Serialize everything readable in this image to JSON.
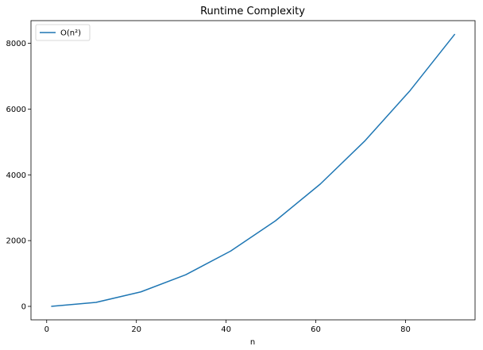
{
  "chart_data": {
    "type": "line",
    "title": "Runtime Complexity",
    "xlabel": "n",
    "ylabel": "",
    "xlim": [
      -3.5,
      95.5
    ],
    "ylim": [
      -410,
      8690
    ],
    "x_ticks": [
      0,
      20,
      40,
      60,
      80
    ],
    "y_ticks": [
      0,
      2000,
      4000,
      6000,
      8000
    ],
    "grid": false,
    "legend_position": "top-left",
    "series": [
      {
        "name": "O(n²)",
        "color": "#1f77b4",
        "x": [
          1,
          11,
          21,
          31,
          41,
          51,
          61,
          71,
          81,
          91
        ],
        "y": [
          1,
          121,
          441,
          961,
          1681,
          2601,
          3721,
          5041,
          6561,
          8281
        ]
      }
    ]
  }
}
